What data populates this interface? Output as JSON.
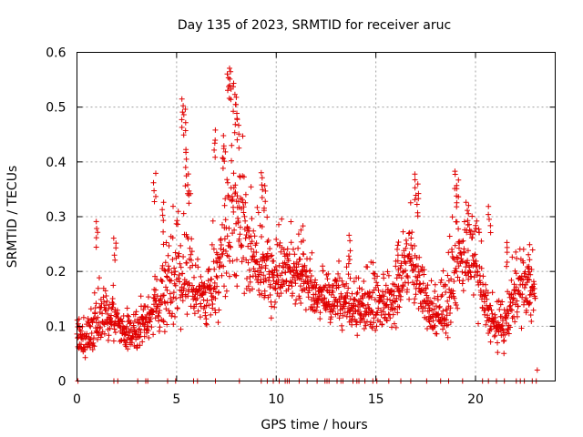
{
  "chart_data": {
    "type": "scatter",
    "title": "Day 135 of 2023, SRMTID for receiver aruc",
    "xlabel": "GPS time / hours",
    "ylabel": "SRMTID / TECUs",
    "xlim": [
      0,
      24
    ],
    "ylim": [
      0,
      0.6
    ],
    "xticks": [
      0,
      5,
      10,
      15,
      20
    ],
    "xtick_labels": [
      "0",
      "5",
      "10",
      "15",
      "20"
    ],
    "yticks": [
      0,
      0.1,
      0.2,
      0.3,
      0.4,
      0.5,
      0.6
    ],
    "ytick_labels": [
      "0",
      "0.1",
      "0.2",
      "0.3",
      "0.4",
      "0.5",
      "0.6"
    ],
    "grid": true,
    "marker": "plus",
    "color": "#e00000",
    "series": [
      {
        "name": "SRMTID",
        "profile": {
          "x": [
            0.0,
            0.3,
            0.6,
            1.0,
            1.4,
            2.0,
            2.4,
            3.0,
            3.5,
            4.0,
            4.5,
            5.0,
            5.5,
            6.0,
            6.5,
            7.0,
            7.5,
            8.0,
            8.5,
            9.0,
            9.5,
            10.0,
            10.5,
            11.0,
            11.5,
            12.0,
            13.0,
            14.0,
            15.0,
            16.0,
            16.5,
            17.0,
            17.5,
            18.0,
            18.5,
            19.0,
            19.5,
            20.0,
            20.5,
            21.0,
            21.5,
            22.0,
            22.5,
            23.0
          ],
          "y": [
            0.09,
            0.07,
            0.08,
            0.11,
            0.12,
            0.11,
            0.08,
            0.09,
            0.11,
            0.14,
            0.17,
            0.18,
            0.22,
            0.15,
            0.15,
            0.2,
            0.26,
            0.3,
            0.25,
            0.22,
            0.2,
            0.19,
            0.2,
            0.2,
            0.19,
            0.15,
            0.15,
            0.13,
            0.14,
            0.15,
            0.22,
            0.2,
            0.14,
            0.11,
            0.13,
            0.2,
            0.24,
            0.2,
            0.14,
            0.09,
            0.1,
            0.16,
            0.17,
            0.16
          ],
          "spread": [
            0.03,
            0.03,
            0.03,
            0.05,
            0.05,
            0.04,
            0.03,
            0.04,
            0.04,
            0.06,
            0.08,
            0.1,
            0.13,
            0.05,
            0.05,
            0.1,
            0.14,
            0.16,
            0.1,
            0.08,
            0.07,
            0.07,
            0.06,
            0.06,
            0.06,
            0.04,
            0.05,
            0.05,
            0.05,
            0.06,
            0.08,
            0.08,
            0.05,
            0.04,
            0.05,
            0.09,
            0.08,
            0.07,
            0.05,
            0.04,
            0.04,
            0.06,
            0.06,
            0.05
          ]
        },
        "peaks": [
          {
            "x": 1.0,
            "y": 0.3
          },
          {
            "x": 1.9,
            "y": 0.27
          },
          {
            "x": 3.9,
            "y": 0.38
          },
          {
            "x": 4.3,
            "y": 0.33
          },
          {
            "x": 5.3,
            "y": 0.52
          },
          {
            "x": 5.4,
            "y": 0.5
          },
          {
            "x": 5.5,
            "y": 0.43
          },
          {
            "x": 5.6,
            "y": 0.38
          },
          {
            "x": 6.9,
            "y": 0.46
          },
          {
            "x": 7.6,
            "y": 0.58
          },
          {
            "x": 7.7,
            "y": 0.57
          },
          {
            "x": 7.9,
            "y": 0.55
          },
          {
            "x": 8.0,
            "y": 0.52
          },
          {
            "x": 8.1,
            "y": 0.48
          },
          {
            "x": 7.4,
            "y": 0.45
          },
          {
            "x": 9.3,
            "y": 0.39
          },
          {
            "x": 9.4,
            "y": 0.36
          },
          {
            "x": 11.3,
            "y": 0.29
          },
          {
            "x": 13.7,
            "y": 0.27
          },
          {
            "x": 16.1,
            "y": 0.26
          },
          {
            "x": 17.0,
            "y": 0.38
          },
          {
            "x": 17.1,
            "y": 0.36
          },
          {
            "x": 19.0,
            "y": 0.39
          },
          {
            "x": 19.1,
            "y": 0.37
          },
          {
            "x": 19.6,
            "y": 0.33
          },
          {
            "x": 20.7,
            "y": 0.32
          },
          {
            "x": 21.6,
            "y": 0.26
          },
          {
            "x": 22.7,
            "y": 0.25
          }
        ],
        "dropouts_x": [
          0.05,
          1.85,
          2.05,
          3.05,
          3.45,
          3.55,
          4.55,
          4.95,
          5.85,
          6.05,
          6.95,
          8.15,
          9.25,
          9.55,
          9.85,
          10.15,
          10.45,
          10.55,
          10.65,
          11.15,
          11.55,
          12.05,
          12.45,
          12.55,
          12.65,
          13.05,
          13.25,
          13.35,
          13.85,
          14.05,
          14.15,
          14.45,
          14.85,
          15.05,
          15.65,
          16.25,
          16.75,
          17.55,
          18.25,
          18.65,
          19.35,
          20.35,
          20.65,
          21.05,
          21.45,
          22.05,
          22.25,
          22.45,
          22.85,
          23.05
        ],
        "last_point": {
          "x": 23.1,
          "y": 0.02
        }
      }
    ]
  }
}
